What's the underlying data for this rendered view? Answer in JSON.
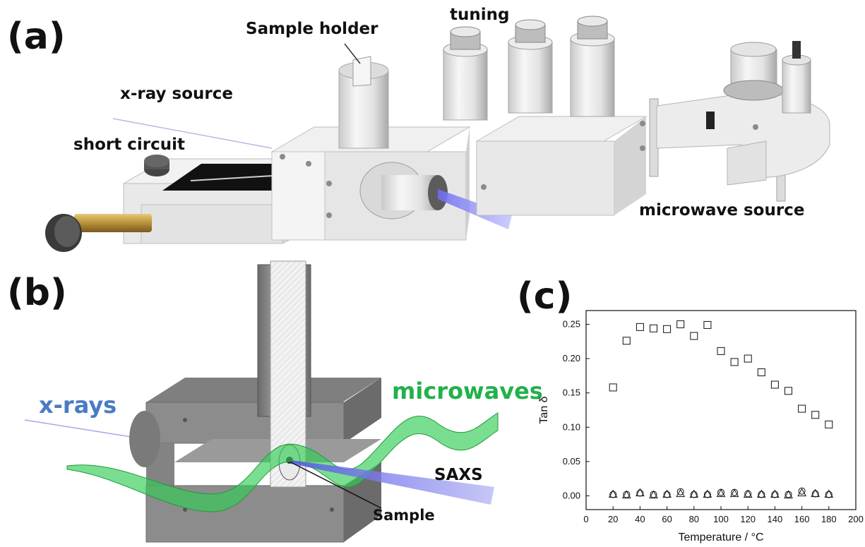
{
  "panel_a": {
    "label": "(a)",
    "callouts": {
      "sample_holder": "Sample holder",
      "tuning": "tuning",
      "xray_source": "x-ray source",
      "short_circuit": "short circuit",
      "microwave_source": "microwave source"
    }
  },
  "panel_b": {
    "label": "(b)",
    "callouts": {
      "xrays": "x-rays",
      "microwaves": "microwaves",
      "saxs": "SAXS",
      "sample": "Sample"
    },
    "colors": {
      "xrays": "#4a7bc4",
      "microwaves": "#22b14c",
      "saxs": "#111111"
    }
  },
  "panel_c": {
    "label": "(c)"
  },
  "chart_data": {
    "type": "scatter",
    "xlabel": "Temperature /  °C",
    "ylabel": "Tan δ",
    "xlim": [
      0,
      200
    ],
    "ylim": [
      -0.02,
      0.27
    ],
    "xticks": [
      0,
      20,
      40,
      60,
      80,
      100,
      120,
      140,
      160,
      180,
      200
    ],
    "yticks": [
      0.0,
      0.05,
      0.1,
      0.15,
      0.2,
      0.25
    ],
    "ytick_labels": [
      "0.00",
      "0.05",
      "0.10",
      "0.15",
      "0.20",
      "0.25"
    ],
    "series": [
      {
        "marker": "square",
        "x": [
          20,
          30,
          40,
          50,
          60,
          70,
          80,
          90,
          100,
          110,
          120,
          130,
          140,
          150,
          160,
          170,
          180
        ],
        "y": [
          0.158,
          0.226,
          0.246,
          0.244,
          0.243,
          0.25,
          0.233,
          0.249,
          0.211,
          0.195,
          0.2,
          0.18,
          0.162,
          0.153,
          0.127,
          0.118,
          0.104
        ]
      },
      {
        "marker": "triangle",
        "x": [
          20,
          30,
          40,
          50,
          60,
          70,
          80,
          90,
          100,
          110,
          120,
          130,
          140,
          150,
          160,
          170,
          180
        ],
        "y": [
          0.002,
          0.001,
          0.004,
          0.001,
          0.002,
          0.003,
          0.002,
          0.002,
          0.003,
          0.003,
          0.002,
          0.002,
          0.002,
          0.001,
          0.004,
          0.003,
          0.002
        ]
      },
      {
        "marker": "circle",
        "x": [
          20,
          30,
          40,
          50,
          60,
          70,
          80,
          90,
          100,
          110,
          120,
          130,
          140,
          150,
          160,
          170,
          180
        ],
        "y": [
          0.001,
          0.001,
          0.003,
          0.001,
          0.001,
          0.005,
          0.001,
          0.001,
          0.004,
          0.004,
          0.002,
          0.001,
          0.001,
          0.001,
          0.006,
          0.002,
          0.001
        ]
      }
    ]
  }
}
